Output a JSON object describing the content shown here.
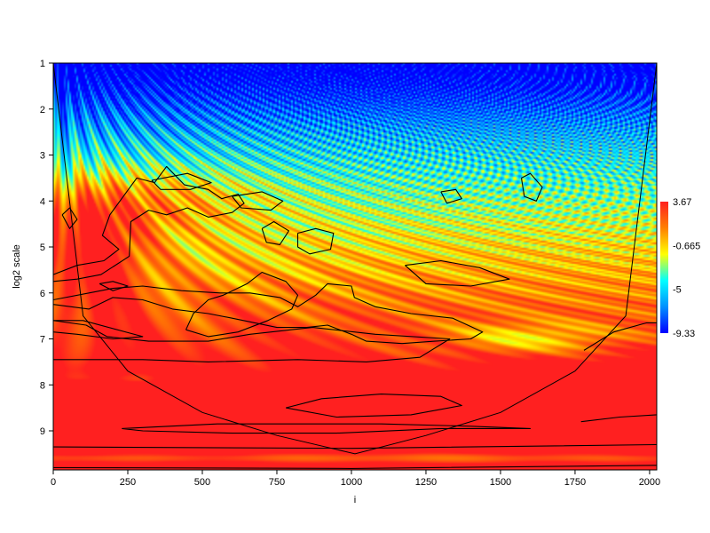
{
  "chart_data": {
    "type": "heatmap",
    "subtype": "wavelet-power-spectrum",
    "title": "",
    "xlabel": "i",
    "ylabel": "log2 scale",
    "xlim": [
      0,
      2024
    ],
    "ylim": [
      9.85,
      1
    ],
    "x_ticks": [
      0,
      250,
      500,
      750,
      1000,
      1250,
      1500,
      1750,
      2000
    ],
    "y_ticks": [
      1,
      2,
      3,
      4,
      5,
      6,
      7,
      8,
      9
    ],
    "colorscale": {
      "min": -9.33,
      "max": 3.67,
      "ticks": [
        3.67,
        -0.665,
        -5,
        -9.33
      ],
      "colors": [
        "#0000ff",
        "#0090ff",
        "#00ffff",
        "#ffff00",
        "#ff8000",
        "#ff2020"
      ]
    },
    "cone_of_influence": {
      "points": [
        [
          0,
          1
        ],
        [
          100,
          6.5
        ],
        [
          250,
          7.7
        ],
        [
          500,
          8.6
        ],
        [
          750,
          9.1
        ],
        [
          1012,
          9.5
        ],
        [
          1250,
          9.1
        ],
        [
          1500,
          8.6
        ],
        [
          1750,
          7.7
        ],
        [
          1920,
          6.5
        ],
        [
          2024,
          1
        ]
      ]
    },
    "significance_contours": [
      [
        [
          0,
          6.85
        ],
        [
          80,
          6.9
        ],
        [
          200,
          7.0
        ],
        [
          300,
          6.95
        ],
        [
          100,
          6.6
        ],
        [
          0,
          6.6
        ]
      ],
      [
        [
          0,
          7.45
        ],
        [
          300,
          7.45
        ],
        [
          520,
          7.5
        ],
        [
          820,
          7.45
        ],
        [
          1050,
          7.5
        ],
        [
          1230,
          7.4
        ],
        [
          1330,
          7.0
        ],
        [
          1080,
          6.9
        ],
        [
          870,
          6.75
        ],
        [
          660,
          6.9
        ],
        [
          520,
          7.05
        ],
        [
          320,
          7.05
        ],
        [
          180,
          6.95
        ],
        [
          110,
          6.7
        ],
        [
          0,
          6.6
        ]
      ],
      [
        [
          0,
          9.35
        ],
        [
          1000,
          9.38
        ],
        [
          2024,
          9.3
        ]
      ],
      [
        [
          0,
          9.8
        ],
        [
          1000,
          9.82
        ],
        [
          2024,
          9.75
        ]
      ],
      [
        [
          1770,
          8.8
        ],
        [
          1900,
          8.7
        ],
        [
          2024,
          8.65
        ]
      ],
      [
        [
          230,
          8.95
        ],
        [
          550,
          8.85
        ],
        [
          850,
          8.85
        ],
        [
          1100,
          8.85
        ],
        [
          1400,
          8.9
        ],
        [
          1600,
          8.95
        ],
        [
          1300,
          8.95
        ],
        [
          950,
          9.05
        ],
        [
          600,
          9.05
        ],
        [
          300,
          9.0
        ],
        [
          230,
          8.95
        ]
      ],
      [
        [
          780,
          8.5
        ],
        [
          900,
          8.3
        ],
        [
          1100,
          8.2
        ],
        [
          1300,
          8.25
        ],
        [
          1370,
          8.45
        ],
        [
          1200,
          8.65
        ],
        [
          950,
          8.7
        ],
        [
          780,
          8.5
        ]
      ],
      [
        [
          1780,
          7.25
        ],
        [
          1880,
          6.85
        ],
        [
          1990,
          6.65
        ],
        [
          2024,
          6.65
        ]
      ],
      [
        [
          0,
          5.6
        ],
        [
          80,
          5.4
        ],
        [
          170,
          5.3
        ],
        [
          220,
          5.05
        ],
        [
          165,
          4.75
        ],
        [
          190,
          4.3
        ],
        [
          235,
          3.9
        ],
        [
          280,
          3.5
        ],
        [
          340,
          3.6
        ],
        [
          380,
          3.25
        ],
        [
          440,
          3.65
        ],
        [
          520,
          3.75
        ],
        [
          565,
          3.95
        ],
        [
          620,
          3.85
        ],
        [
          640,
          4.05
        ],
        [
          600,
          4.25
        ],
        [
          520,
          4.35
        ],
        [
          450,
          4.15
        ],
        [
          380,
          4.3
        ],
        [
          320,
          4.2
        ],
        [
          260,
          4.45
        ],
        [
          255,
          5.2
        ],
        [
          160,
          5.6
        ],
        [
          80,
          5.7
        ],
        [
          0,
          5.75
        ]
      ],
      [
        [
          0,
          6.25
        ],
        [
          120,
          6.35
        ],
        [
          200,
          6.1
        ],
        [
          300,
          6.15
        ],
        [
          400,
          6.35
        ],
        [
          520,
          6.45
        ],
        [
          600,
          6.55
        ],
        [
          750,
          6.75
        ],
        [
          850,
          6.75
        ],
        [
          920,
          6.7
        ],
        [
          1000,
          6.9
        ],
        [
          1050,
          7.05
        ],
        [
          1170,
          7.1
        ],
        [
          1280,
          7.05
        ],
        [
          1400,
          7.0
        ],
        [
          1440,
          6.85
        ],
        [
          1340,
          6.55
        ],
        [
          1200,
          6.45
        ],
        [
          1080,
          6.3
        ],
        [
          1010,
          6.1
        ],
        [
          1000,
          5.85
        ],
        [
          920,
          5.8
        ],
        [
          880,
          6.05
        ],
        [
          820,
          6.3
        ],
        [
          760,
          6.1
        ],
        [
          660,
          6.0
        ],
        [
          560,
          6.0
        ],
        [
          430,
          5.95
        ],
        [
          300,
          5.85
        ],
        [
          200,
          5.9
        ],
        [
          120,
          6.0
        ],
        [
          0,
          6.15
        ]
      ],
      [
        [
          445,
          6.8
        ],
        [
          470,
          6.45
        ],
        [
          520,
          6.15
        ],
        [
          570,
          6.05
        ],
        [
          650,
          5.8
        ],
        [
          700,
          5.55
        ],
        [
          780,
          5.75
        ],
        [
          820,
          6.05
        ],
        [
          800,
          6.35
        ],
        [
          720,
          6.6
        ],
        [
          620,
          6.85
        ],
        [
          520,
          6.95
        ],
        [
          445,
          6.8
        ]
      ],
      [
        [
          600,
          3.9
        ],
        [
          700,
          3.8
        ],
        [
          770,
          4.0
        ],
        [
          730,
          4.2
        ],
        [
          630,
          4.15
        ],
        [
          600,
          3.9
        ]
      ],
      [
        [
          330,
          3.55
        ],
        [
          450,
          3.4
        ],
        [
          530,
          3.6
        ],
        [
          460,
          3.75
        ],
        [
          360,
          3.75
        ],
        [
          330,
          3.55
        ]
      ],
      [
        [
          820,
          4.7
        ],
        [
          880,
          4.6
        ],
        [
          940,
          4.7
        ],
        [
          930,
          5.05
        ],
        [
          860,
          5.15
        ],
        [
          820,
          5.0
        ],
        [
          820,
          4.7
        ]
      ],
      [
        [
          700,
          4.6
        ],
        [
          740,
          4.45
        ],
        [
          790,
          4.65
        ],
        [
          760,
          4.95
        ],
        [
          715,
          4.9
        ],
        [
          700,
          4.6
        ]
      ],
      [
        [
          1180,
          5.4
        ],
        [
          1300,
          5.3
        ],
        [
          1430,
          5.45
        ],
        [
          1530,
          5.7
        ],
        [
          1400,
          5.85
        ],
        [
          1250,
          5.8
        ],
        [
          1180,
          5.4
        ]
      ],
      [
        [
          1300,
          3.8
        ],
        [
          1350,
          3.75
        ],
        [
          1370,
          3.95
        ],
        [
          1320,
          4.05
        ],
        [
          1300,
          3.8
        ]
      ],
      [
        [
          1570,
          3.5
        ],
        [
          1600,
          3.4
        ],
        [
          1640,
          3.7
        ],
        [
          1620,
          4.0
        ],
        [
          1580,
          3.9
        ],
        [
          1570,
          3.5
        ]
      ],
      [
        [
          155,
          5.8
        ],
        [
          200,
          5.75
        ],
        [
          250,
          5.85
        ],
        [
          200,
          5.95
        ],
        [
          155,
          5.8
        ]
      ],
      [
        [
          30,
          4.3
        ],
        [
          55,
          4.15
        ],
        [
          80,
          4.4
        ],
        [
          55,
          4.6
        ],
        [
          30,
          4.3
        ]
      ]
    ]
  }
}
